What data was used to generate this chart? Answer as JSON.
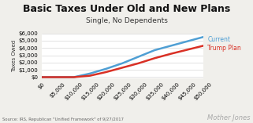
{
  "title": "Basic Taxes Under Old and New Plans",
  "subtitle": "Single, No Dependents",
  "xlabel_values": [
    0,
    5000,
    10000,
    15000,
    20000,
    25000,
    30000,
    35000,
    40000,
    45000,
    50000
  ],
  "ylabel_values": [
    0,
    1000,
    2000,
    3000,
    4000,
    5000,
    6000
  ],
  "xlim": [
    0,
    50000
  ],
  "ylim": [
    -200,
    6000
  ],
  "current_x": [
    0,
    10000,
    15000,
    20000,
    25000,
    30000,
    35000,
    40000,
    45000,
    50000
  ],
  "current_y": [
    0,
    0,
    500,
    1150,
    1900,
    2800,
    3700,
    4300,
    4900,
    5500
  ],
  "trump_x": [
    0,
    10000,
    15000,
    20000,
    25000,
    30000,
    35000,
    40000,
    45000,
    50000
  ],
  "trump_y": [
    0,
    0,
    200,
    700,
    1300,
    1900,
    2600,
    3200,
    3750,
    4300
  ],
  "current_color": "#4f9fd4",
  "trump_color": "#d93025",
  "label_current": "Current",
  "label_trump": "Trump Plan",
  "source_text": "Source: IRS, Republican \"Unified Framework\" of 9/27/2017",
  "watermark": "Mother Jones",
  "bg_color": "#f0efeb",
  "plot_bg_color": "#ffffff",
  "title_fontsize": 9,
  "subtitle_fontsize": 6.5,
  "tick_fontsize": 5,
  "label_fontsize": 5,
  "ylabel_text": "Taxes Owed"
}
